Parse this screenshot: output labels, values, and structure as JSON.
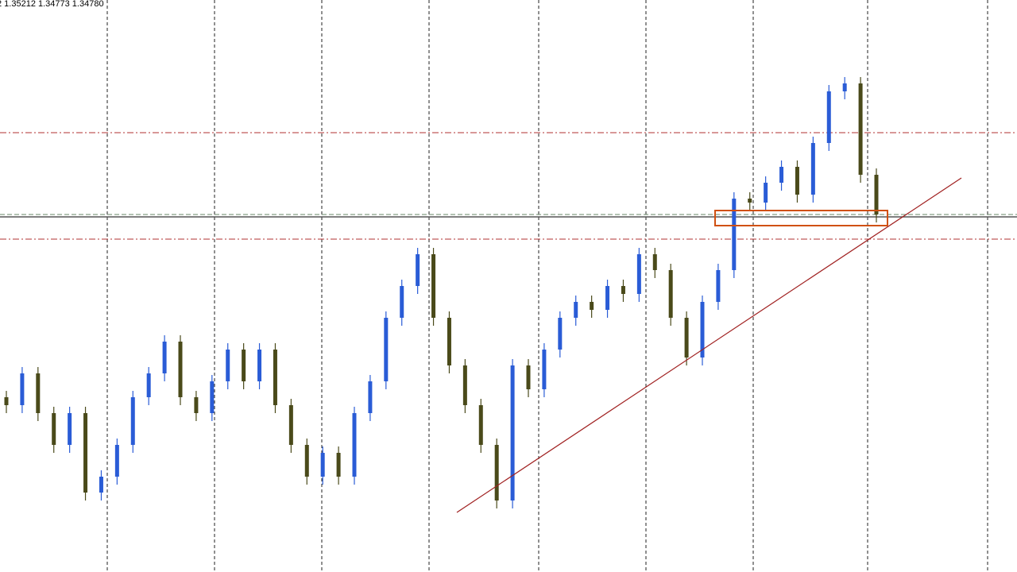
{
  "chart_data": {
    "type": "candlestick",
    "title": "2 1.35212 1.34773 1.34780",
    "up_color": "#2a5cd6",
    "down_color": "#4a4a1a",
    "ylim": [
      1.3031,
      1.3751
    ],
    "open": [
      1.3251,
      1.3241,
      1.3281,
      1.3231,
      1.3191,
      1.3231,
      1.3131,
      1.3151,
      1.3191,
      1.3251,
      1.3281,
      1.3321,
      1.3251,
      1.3231,
      1.3271,
      1.3311,
      1.3271,
      1.3311,
      1.3241,
      1.3191,
      1.3151,
      1.3181,
      1.3151,
      1.3231,
      1.3271,
      1.3351,
      1.3391,
      1.3431,
      1.3351,
      1.3291,
      1.3241,
      1.3191,
      1.3121,
      1.3291,
      1.3261,
      1.3311,
      1.3351,
      1.3371,
      1.3361,
      1.3391,
      1.3381,
      1.3431,
      1.3411,
      1.3351,
      1.3301,
      1.3371,
      1.3411,
      1.3501,
      1.3496,
      1.3521,
      1.3541,
      1.3506,
      1.3571,
      1.3636,
      1.3646,
      1.3531
    ],
    "high": [
      1.3259,
      1.3289,
      1.3289,
      1.3239,
      1.3239,
      1.3239,
      1.3159,
      1.3199,
      1.3259,
      1.3289,
      1.3329,
      1.3329,
      1.3259,
      1.3279,
      1.3319,
      1.3319,
      1.3319,
      1.3319,
      1.3249,
      1.3199,
      1.3189,
      1.3189,
      1.3239,
      1.3279,
      1.3359,
      1.3399,
      1.3439,
      1.3439,
      1.3359,
      1.3299,
      1.3249,
      1.3199,
      1.3299,
      1.3299,
      1.3319,
      1.3359,
      1.3379,
      1.3379,
      1.3399,
      1.3399,
      1.3439,
      1.3439,
      1.3419,
      1.3359,
      1.3379,
      1.3419,
      1.3509,
      1.3509,
      1.3529,
      1.3549,
      1.3549,
      1.3579,
      1.3644,
      1.3654,
      1.3654,
      1.3539
    ],
    "low": [
      1.3231,
      1.3231,
      1.3221,
      1.3181,
      1.3181,
      1.3121,
      1.3121,
      1.3141,
      1.3181,
      1.3241,
      1.3271,
      1.3241,
      1.3221,
      1.3221,
      1.3261,
      1.3261,
      1.3261,
      1.3231,
      1.3181,
      1.3141,
      1.3141,
      1.3141,
      1.3141,
      1.3221,
      1.3261,
      1.3341,
      1.3381,
      1.3341,
      1.3281,
      1.3231,
      1.3181,
      1.3111,
      1.3111,
      1.3251,
      1.3251,
      1.3301,
      1.3341,
      1.3351,
      1.3351,
      1.3371,
      1.3371,
      1.3401,
      1.3341,
      1.3291,
      1.3291,
      1.3361,
      1.3401,
      1.3486,
      1.3486,
      1.3511,
      1.3496,
      1.3496,
      1.3561,
      1.3626,
      1.3521,
      1.3471
    ],
    "close": [
      1.3241,
      1.3281,
      1.3231,
      1.3191,
      1.3231,
      1.3131,
      1.3151,
      1.3191,
      1.3251,
      1.3281,
      1.3321,
      1.3251,
      1.3231,
      1.3271,
      1.3311,
      1.3271,
      1.3311,
      1.3241,
      1.3191,
      1.3151,
      1.3181,
      1.3151,
      1.3231,
      1.3271,
      1.3351,
      1.3391,
      1.3431,
      1.3351,
      1.3291,
      1.3241,
      1.3191,
      1.3121,
      1.3291,
      1.3261,
      1.3311,
      1.3351,
      1.3371,
      1.3361,
      1.3391,
      1.3381,
      1.3431,
      1.3411,
      1.3351,
      1.3301,
      1.3371,
      1.3411,
      1.3501,
      1.3496,
      1.3521,
      1.3541,
      1.3506,
      1.3571,
      1.3636,
      1.3646,
      1.3531,
      1.3481
    ]
  }
}
